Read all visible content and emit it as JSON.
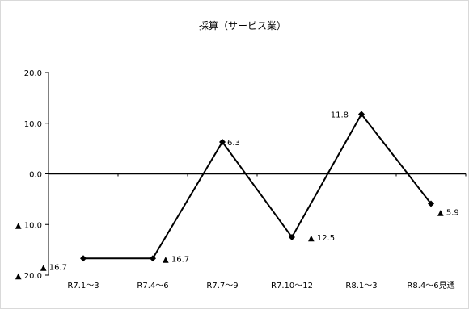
{
  "chart_data": {
    "type": "line",
    "title": "採算（サービス業）",
    "categories": [
      "R7.1～3",
      "R7.4～6",
      "R7.7～9",
      "R7.10～12",
      "R8.1～3",
      "R8.4～6見通"
    ],
    "series": [
      {
        "values": [
          -16.7,
          -16.7,
          6.3,
          -12.5,
          11.8,
          -5.9
        ],
        "data_labels": [
          "▲ 16.7",
          "▲ 16.7",
          "6.3",
          "▲ 12.5",
          "11.8",
          "▲ 5.9"
        ]
      }
    ],
    "yticks": [
      20,
      10,
      0,
      -10,
      -20
    ],
    "ytick_labels": [
      "20.0",
      "10.0",
      "0.0",
      "▲ 10.0",
      "▲ 20.0"
    ],
    "ylim": [
      -20,
      20
    ],
    "grid": false,
    "legend": "none",
    "colors": {
      "line": "#000000",
      "axis": "#000000"
    }
  }
}
